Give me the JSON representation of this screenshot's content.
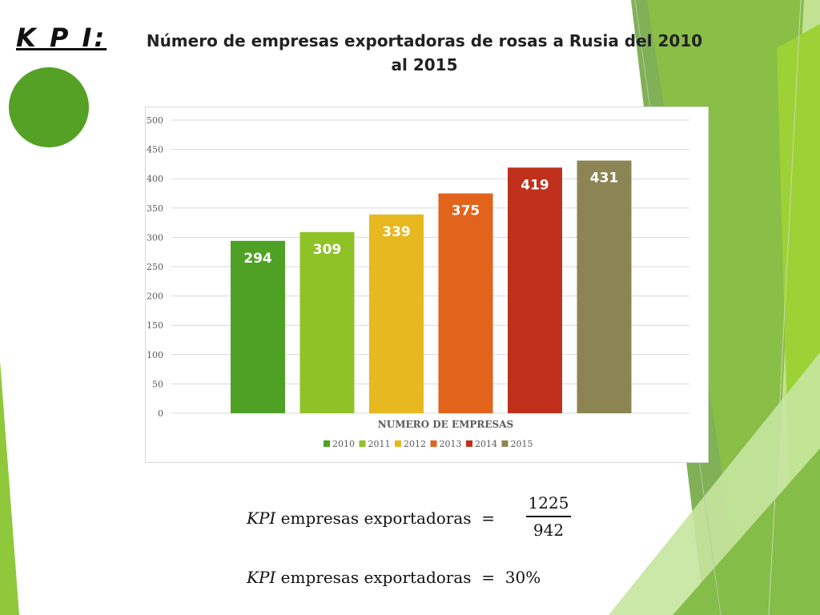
{
  "slide": {
    "kpi_label": "K P I:",
    "title": "Número de empresas exportadoras de rosas a Rusia del 2010 al 2015",
    "colors": {
      "accent_green": "#54a126",
      "light_green": "#8fc227"
    }
  },
  "chart_data": {
    "type": "bar",
    "title": "",
    "xlabel": "NUMERO DE EMPRESAS",
    "ylabel": "",
    "ylim": [
      0,
      500
    ],
    "yticks": [
      0,
      50,
      100,
      150,
      200,
      250,
      300,
      350,
      400,
      450,
      500
    ],
    "categories": [
      "NUMERO DE EMPRESAS"
    ],
    "grid": true,
    "legend_position": "bottom",
    "data_labels": true,
    "series": [
      {
        "name": "2010",
        "values": [
          294
        ],
        "color": "#4ea125"
      },
      {
        "name": "2011",
        "values": [
          309
        ],
        "color": "#8fc227"
      },
      {
        "name": "2012",
        "values": [
          339
        ],
        "color": "#e7b81f"
      },
      {
        "name": "2013",
        "values": [
          375
        ],
        "color": "#e2631b"
      },
      {
        "name": "2014",
        "values": [
          419
        ],
        "color": "#c0301c"
      },
      {
        "name": "2015",
        "values": [
          431
        ],
        "color": "#8c8553"
      }
    ]
  },
  "formulas": {
    "kpi_prefix": "KPI",
    "line1_text": "empresas exportadoras",
    "numerator": "1225",
    "denominator": "942",
    "line2_text": "empresas exportadoras",
    "result": "30%"
  }
}
